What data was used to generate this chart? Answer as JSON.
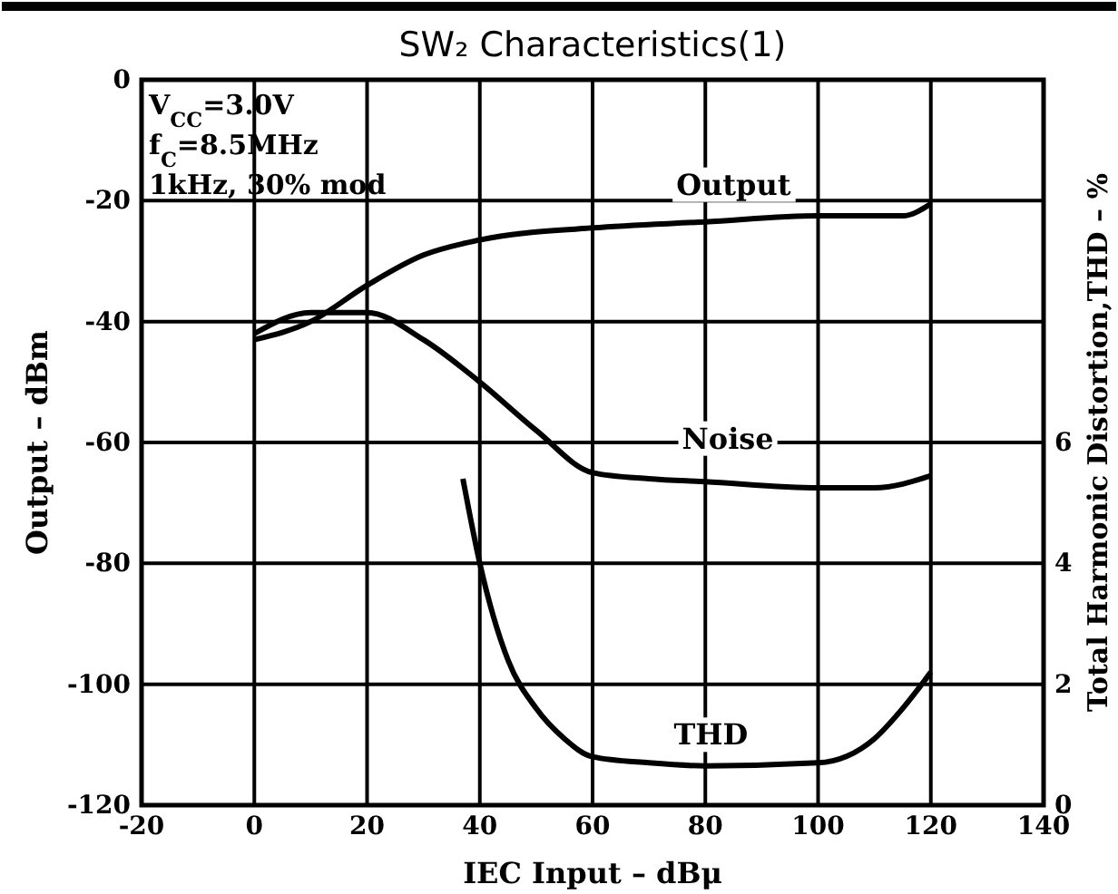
{
  "chart_data": {
    "type": "line",
    "title": "SW₂ Characteristics(1)",
    "xlabel": "IEC Input  –  dBμ",
    "ylabel": "Output  –  dBm",
    "y2label": "Total Harmonic Distortion,THD  –  %",
    "annotations": [
      "V$_{CC}$=3.0V",
      "f$_{C}$=8.5MHz",
      "1kHz, 30% mod"
    ],
    "xlim": [
      -20,
      140
    ],
    "xticks": [
      -20,
      0,
      20,
      40,
      60,
      80,
      100,
      120,
      140
    ],
    "ylim": [
      -120,
      0
    ],
    "yticks": [
      -120,
      -100,
      -80,
      -60,
      -40,
      -20,
      0
    ],
    "y2lim": [
      0,
      12
    ],
    "y2ticks": [
      0,
      2,
      4,
      6
    ],
    "grid": true,
    "marker": "none",
    "line_style": "solid",
    "series": [
      {
        "name": "Output",
        "color": "#000000",
        "x": [
          0,
          10,
          20,
          30,
          40,
          60,
          80,
          100,
          115,
          120
        ],
        "values": [
          -43,
          -40,
          -34,
          -29,
          -26.5,
          -24.5,
          -23.5,
          -22.5,
          -22.5,
          -20.5
        ]
      },
      {
        "name": "Noise",
        "color": "#000000",
        "x": [
          0,
          10,
          20,
          30,
          40,
          50,
          60,
          70,
          80,
          100,
          110,
          120
        ],
        "values": [
          -42,
          -38.5,
          -38.5,
          -43,
          -50,
          -58,
          -65,
          -66,
          -66.5,
          -67.5,
          -67.5,
          -65.5
        ]
      },
      {
        "name": "THD",
        "color": "#000000",
        "axis": "y2",
        "x": [
          37,
          40,
          45,
          50,
          55,
          60,
          70,
          80,
          100,
          110,
          115,
          120
        ],
        "values": [
          5.4,
          4.0,
          2.4,
          1.6,
          1.1,
          0.8,
          0.7,
          0.65,
          0.7,
          1.1,
          1.6,
          2.2
        ]
      }
    ]
  }
}
